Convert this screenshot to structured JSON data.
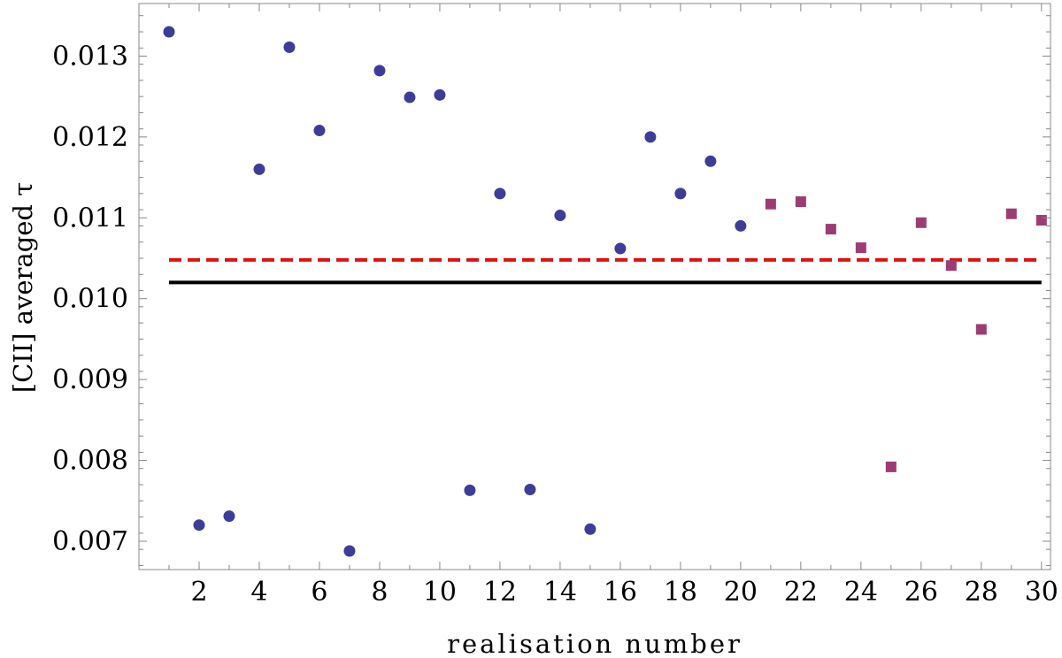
{
  "chart_data": {
    "type": "scatter",
    "xlabel": "realisation number",
    "ylabel": "[CII] averaged τ",
    "xlim": [
      0,
      30.3
    ],
    "ylim": [
      0.00665,
      0.01365
    ],
    "x_ticks": [
      2,
      4,
      6,
      8,
      10,
      12,
      14,
      16,
      18,
      20,
      22,
      24,
      26,
      28,
      30
    ],
    "y_ticks": [
      0.007,
      0.008,
      0.009,
      0.01,
      0.011,
      0.012,
      0.013
    ],
    "y_tick_labels": [
      "0.007",
      "0.008",
      "0.009",
      "0.010",
      "0.011",
      "0.012",
      "0.013"
    ],
    "grid": false,
    "series": [
      {
        "marker": "circle",
        "color": "#3d3d99",
        "x": [
          1,
          2,
          3,
          4,
          5,
          6,
          7,
          8,
          9,
          10,
          11,
          12,
          13,
          14,
          15,
          16,
          17,
          18,
          19,
          20
        ],
        "y": [
          0.0133,
          0.0072,
          0.00731,
          0.0116,
          0.01311,
          0.01208,
          0.00688,
          0.01282,
          0.01249,
          0.01252,
          0.00763,
          0.0113,
          0.00764,
          0.01103,
          0.00715,
          0.01062,
          0.012,
          0.0113,
          0.0117,
          0.0109
        ]
      },
      {
        "marker": "square",
        "color": "#9b3d73",
        "x": [
          21,
          22,
          23,
          24,
          25,
          26,
          27,
          28,
          29,
          30
        ],
        "y": [
          0.01117,
          0.0112,
          0.01086,
          0.01063,
          0.00792,
          0.01094,
          0.01041,
          0.00962,
          0.01105,
          0.01097
        ]
      }
    ],
    "reference_lines": [
      {
        "style": "dashed",
        "color": "#e01010",
        "y": 0.01048,
        "x_from": 1,
        "x_to": 30
      },
      {
        "style": "solid",
        "color": "#000000",
        "y": 0.0102,
        "x_from": 1,
        "x_to": 30
      }
    ]
  }
}
